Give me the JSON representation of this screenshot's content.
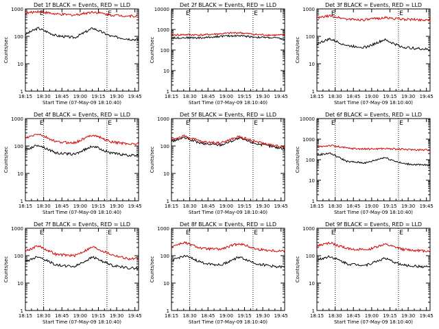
{
  "colors": {
    "events": "#000000",
    "lld": "#d40000",
    "axis": "#000000",
    "background": "#ffffff"
  },
  "chart_data": [
    {
      "type": "line",
      "title": "Det 1f BLACK = Events, RED = LLD",
      "xlabel": "Start Time (07-May-09 18:10:40)",
      "ylabel": "Counts/sec",
      "xticks": [
        "18:15",
        "18:30",
        "18:45",
        "19:00",
        "19:15",
        "19:30",
        "19:45"
      ],
      "yticks": [
        "1",
        "10",
        "100",
        "1000"
      ],
      "ylim": [
        1,
        1000
      ],
      "yscale": "log",
      "annotation": "E",
      "x_minutes": [
        0,
        15,
        30,
        45,
        60,
        75,
        90,
        105
      ],
      "series": [
        {
          "name": "BLACK = Events",
          "values": [
            95,
            200,
            105,
            90,
            200,
            100,
            80,
            70
          ]
        },
        {
          "name": "RED = LLD",
          "values": [
            630,
            820,
            640,
            600,
            780,
            600,
            550,
            560
          ]
        }
      ]
    },
    {
      "type": "line",
      "title": "Det 2f BLACK = Events, RED = LLD",
      "xlabel": "Start Time (07-May-09 18:10:40)",
      "ylabel": "Counts/sec",
      "xticks": [
        "18:15",
        "18:30",
        "18:45",
        "19:00",
        "19:15",
        "19:30",
        "19:45"
      ],
      "yticks": [
        "1",
        "10",
        "100",
        "1000",
        "10000"
      ],
      "ylim": [
        1,
        10000
      ],
      "yscale": "log",
      "annotation": "E",
      "x_minutes": [
        0,
        15,
        30,
        45,
        60,
        75,
        90,
        105
      ],
      "series": [
        {
          "name": "BLACK = Events",
          "values": [
            380,
            400,
            390,
            470,
            500,
            420,
            390,
            280
          ]
        },
        {
          "name": "RED = LLD",
          "values": [
            520,
            560,
            540,
            620,
            700,
            560,
            530,
            530
          ]
        }
      ]
    },
    {
      "type": "line",
      "title": "Det 3f BLACK = Events, RED = LLD",
      "xlabel": "Start Time (07-May-09 18:10:40)",
      "ylabel": "Counts/sec",
      "xticks": [
        "18:15",
        "18:30",
        "18:45",
        "19:00",
        "19:15",
        "19:30",
        "19:45"
      ],
      "yticks": [
        "1",
        "10",
        "100",
        "1000"
      ],
      "ylim": [
        1,
        1000
      ],
      "yscale": "log",
      "annotation": "E",
      "x_minutes": [
        0,
        15,
        30,
        45,
        60,
        75,
        90,
        105
      ],
      "series": [
        {
          "name": "BLACK = Events",
          "values": [
            45,
            80,
            45,
            40,
            75,
            40,
            35,
            30
          ]
        },
        {
          "name": "RED = LLD",
          "values": [
            420,
            560,
            420,
            400,
            480,
            420,
            400,
            400
          ]
        }
      ]
    },
    {
      "type": "line",
      "title": "Det 4f BLACK = Events, RED = LLD",
      "xlabel": "Start Time (07-May-09 18:10:40)",
      "ylabel": "Counts/sec",
      "xticks": [
        "18:15",
        "18:30",
        "18:45",
        "19:00",
        "19:15",
        "19:30",
        "19:45"
      ],
      "yticks": [
        "1",
        "10",
        "100",
        "1000"
      ],
      "ylim": [
        1,
        1000
      ],
      "yscale": "log",
      "annotation": "E",
      "x_minutes": [
        0,
        15,
        30,
        45,
        60,
        75,
        90,
        105
      ],
      "series": [
        {
          "name": "BLACK = Events",
          "values": [
            60,
            110,
            55,
            50,
            100,
            55,
            45,
            45
          ]
        },
        {
          "name": "RED = LLD",
          "values": [
            160,
            280,
            140,
            130,
            260,
            140,
            120,
            120
          ]
        }
      ]
    },
    {
      "type": "line",
      "title": "Det 5f BLACK = Events, RED = LLD",
      "xlabel": "Start Time (07-May-09 18:10:40)",
      "ylabel": "Counts/sec",
      "xticks": [
        "18:15",
        "18:30",
        "18:45",
        "19:00",
        "19:15",
        "19:30",
        "19:45"
      ],
      "yticks": [
        "1",
        "10",
        "100",
        "1000"
      ],
      "ylim": [
        1,
        1000
      ],
      "yscale": "log",
      "annotation": "E",
      "x_minutes": [
        0,
        15,
        30,
        45,
        60,
        75,
        90,
        105
      ],
      "series": [
        {
          "name": "BLACK = Events",
          "values": [
            130,
            200,
            120,
            110,
            190,
            120,
            90,
            70
          ]
        },
        {
          "name": "RED = LLD",
          "values": [
            150,
            230,
            140,
            130,
            220,
            140,
            100,
            95
          ]
        }
      ]
    },
    {
      "type": "line",
      "title": "Det 6f BLACK = Events, RED = LLD",
      "xlabel": "Start Time (07-May-09 18:10:40)",
      "ylabel": "Counts/sec",
      "xticks": [
        "18:15",
        "18:30",
        "18:45",
        "19:00",
        "19:15",
        "19:30",
        "19:45"
      ],
      "yticks": [
        "1",
        "10",
        "100",
        "1000",
        "10000"
      ],
      "ylim": [
        1,
        10000
      ],
      "yscale": "log",
      "annotation": "E",
      "x_minutes": [
        0,
        15,
        30,
        45,
        60,
        75,
        90,
        105
      ],
      "series": [
        {
          "name": "BLACK = Events",
          "values": [
            150,
            210,
            80,
            70,
            130,
            65,
            55,
            55
          ]
        },
        {
          "name": "RED = LLD",
          "values": [
            380,
            500,
            360,
            330,
            350,
            320,
            300,
            300
          ]
        }
      ]
    },
    {
      "type": "line",
      "title": "Det 7f BLACK = Events, RED = LLD",
      "xlabel": "Start Time (07-May-09 18:10:40)",
      "ylabel": "Counts/sec",
      "xticks": [
        "18:15",
        "18:30",
        "18:45",
        "19:00",
        "19:15",
        "19:30",
        "19:45"
      ],
      "yticks": [
        "1",
        "10",
        "100",
        "1000"
      ],
      "ylim": [
        1,
        1000
      ],
      "yscale": "log",
      "annotation": "E",
      "x_minutes": [
        0,
        15,
        30,
        45,
        60,
        75,
        90,
        105
      ],
      "series": [
        {
          "name": "BLACK = Events",
          "values": [
            50,
            95,
            45,
            40,
            90,
            45,
            35,
            35
          ]
        },
        {
          "name": "RED = LLD",
          "values": [
            120,
            230,
            110,
            100,
            210,
            110,
            75,
            80
          ]
        }
      ]
    },
    {
      "type": "line",
      "title": "Det 8f BLACK = Events, RED = LLD",
      "xlabel": "Start Time (07-May-09 18:10:40)",
      "ylabel": "Counts/sec",
      "xticks": [
        "18:15",
        "18:30",
        "18:45",
        "19:00",
        "19:15",
        "19:30",
        "19:45"
      ],
      "yticks": [
        "1",
        "10",
        "100",
        "1000"
      ],
      "ylim": [
        1,
        1000
      ],
      "yscale": "log",
      "annotation": "E",
      "x_minutes": [
        0,
        15,
        30,
        45,
        60,
        75,
        90,
        105
      ],
      "series": [
        {
          "name": "BLACK = Events",
          "values": [
            55,
            100,
            55,
            45,
            90,
            50,
            40,
            35
          ]
        },
        {
          "name": "RED = LLD",
          "values": [
            190,
            300,
            180,
            170,
            280,
            170,
            150,
            150
          ]
        }
      ]
    },
    {
      "type": "line",
      "title": "Det 9f BLACK = Events, RED = LLD",
      "xlabel": "Start Time (07-May-09 18:10:40)",
      "ylabel": "Counts/sec",
      "xticks": [
        "18:15",
        "18:30",
        "18:45",
        "19:00",
        "19:15",
        "19:30",
        "19:45"
      ],
      "yticks": [
        "1",
        "10",
        "100",
        "1000"
      ],
      "ylim": [
        1,
        1000
      ],
      "yscale": "log",
      "annotation": "E",
      "x_minutes": [
        0,
        15,
        30,
        45,
        60,
        75,
        90,
        105
      ],
      "series": [
        {
          "name": "BLACK = Events",
          "values": [
            60,
            95,
            50,
            45,
            80,
            45,
            40,
            38
          ]
        },
        {
          "name": "RED = LLD",
          "values": [
            200,
            290,
            180,
            160,
            260,
            170,
            150,
            150
          ]
        }
      ]
    }
  ]
}
